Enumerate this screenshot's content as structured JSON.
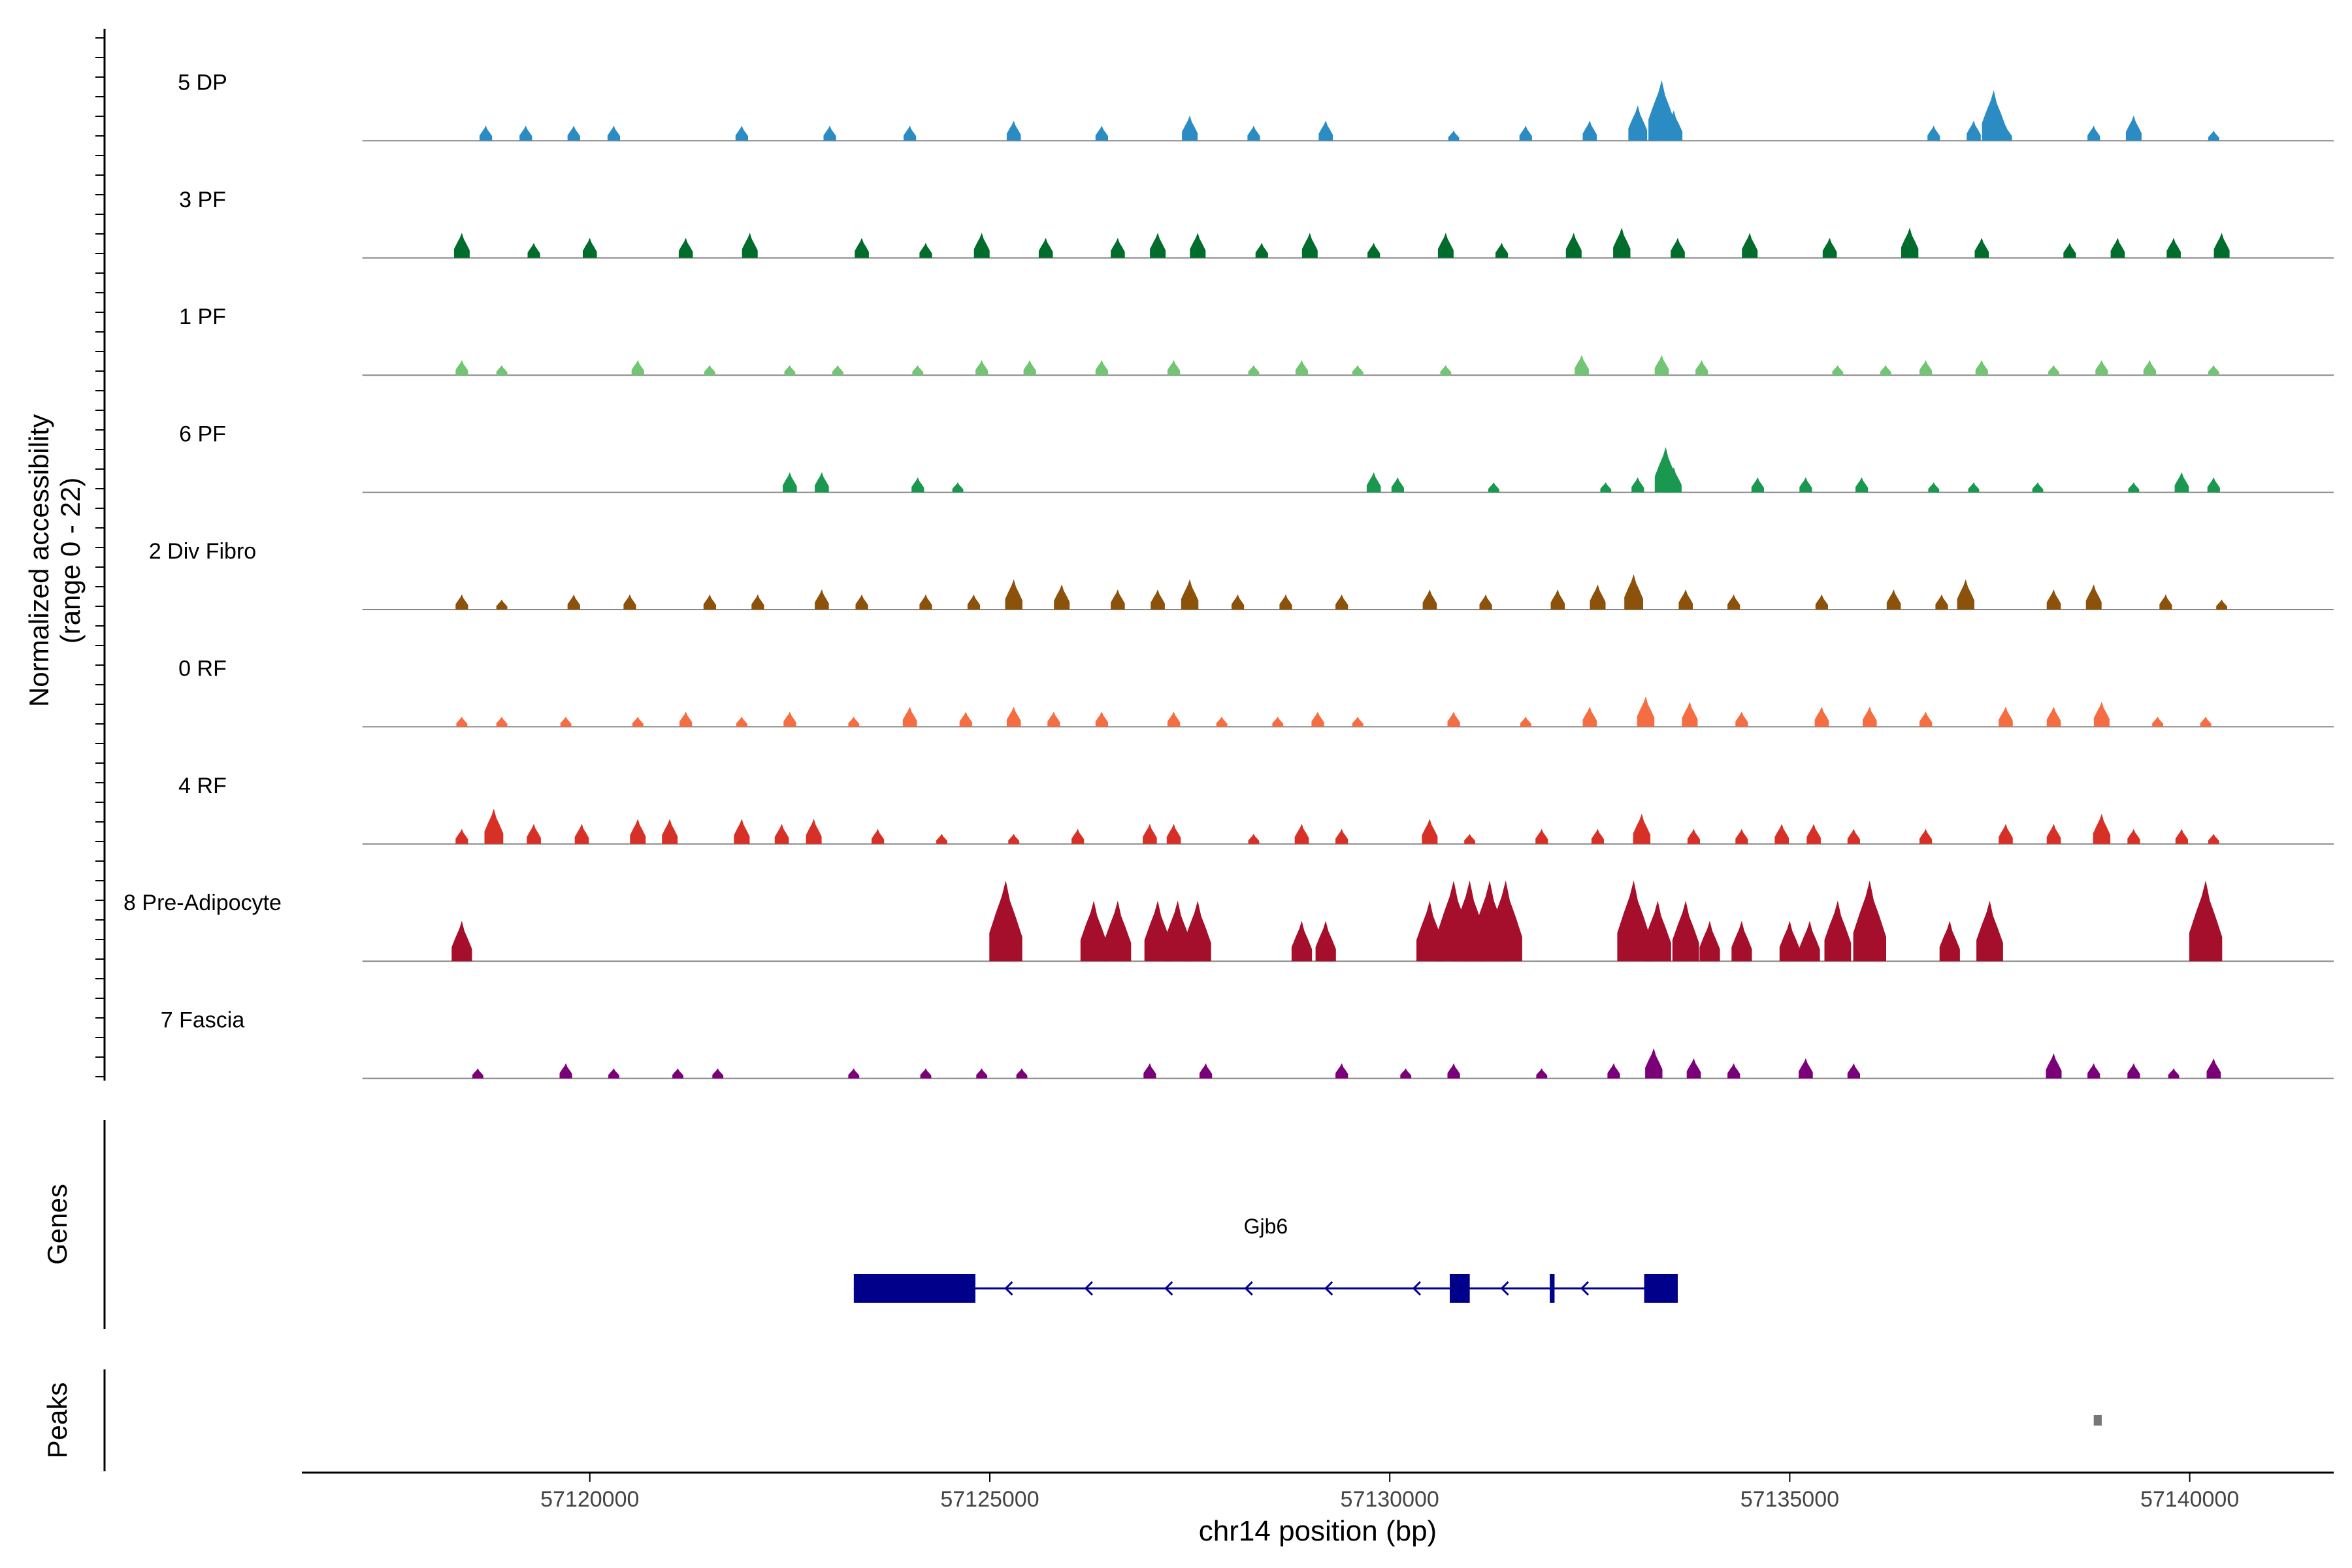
{
  "chart_data": {
    "type": "coverage-track",
    "title": "",
    "y_axis_label": [
      "Normalized accessibility",
      "(range 0 - 22)"
    ],
    "y_range": [
      0,
      22
    ],
    "x_axis_label": "chr14 position (bp)",
    "x_range": [
      57116400,
      57141800
    ],
    "x_ticks": [
      {
        "value": 57120000,
        "label": "57120000"
      },
      {
        "value": 57125000,
        "label": "57125000"
      },
      {
        "value": 57130000,
        "label": "57130000"
      },
      {
        "value": 57135000,
        "label": "57135000"
      },
      {
        "value": 57140000,
        "label": "57140000"
      }
    ],
    "track_start": 57118300,
    "track_end": 57140600,
    "tracks": [
      {
        "name": "5 DP",
        "color": "#2B8CC4",
        "peaks": [
          [
            57118700,
            3
          ],
          [
            57119200,
            3
          ],
          [
            57119800,
            3
          ],
          [
            57120300,
            3
          ],
          [
            57121900,
            3
          ],
          [
            57123000,
            3
          ],
          [
            57124000,
            3
          ],
          [
            57125300,
            4
          ],
          [
            57126400,
            3
          ],
          [
            57127500,
            5
          ],
          [
            57128300,
            3
          ],
          [
            57129200,
            4
          ],
          [
            57130800,
            2
          ],
          [
            57131700,
            3
          ],
          [
            57132500,
            4
          ],
          [
            57133100,
            7
          ],
          [
            57133400,
            12
          ],
          [
            57133550,
            6
          ],
          [
            57136800,
            3
          ],
          [
            57137300,
            4
          ],
          [
            57137700,
            3
          ],
          [
            57137550,
            10
          ],
          [
            57138800,
            3
          ],
          [
            57139300,
            5
          ],
          [
            57140300,
            2
          ]
        ]
      },
      {
        "name": "3 PF",
        "color": "#006D2C",
        "peaks": [
          [
            57118400,
            5
          ],
          [
            57119300,
            3
          ],
          [
            57120000,
            4
          ],
          [
            57121200,
            4
          ],
          [
            57122000,
            5
          ],
          [
            57123400,
            4
          ],
          [
            57124200,
            3
          ],
          [
            57124900,
            5
          ],
          [
            57125700,
            4
          ],
          [
            57126600,
            4
          ],
          [
            57127100,
            5
          ],
          [
            57127600,
            5
          ],
          [
            57128400,
            3
          ],
          [
            57129000,
            5
          ],
          [
            57129800,
            3
          ],
          [
            57130700,
            5
          ],
          [
            57131400,
            3
          ],
          [
            57132300,
            5
          ],
          [
            57132900,
            6
          ],
          [
            57133600,
            4
          ],
          [
            57134500,
            5
          ],
          [
            57135500,
            4
          ],
          [
            57136500,
            6
          ],
          [
            57137400,
            4
          ],
          [
            57138500,
            3
          ],
          [
            57139100,
            4
          ],
          [
            57139800,
            4
          ],
          [
            57140400,
            5
          ]
        ]
      },
      {
        "name": "1 PF",
        "color": "#74C476",
        "peaks": [
          [
            57118400,
            3
          ],
          [
            57118900,
            2
          ],
          [
            57120600,
            3
          ],
          [
            57121500,
            2
          ],
          [
            57122500,
            2
          ],
          [
            57123100,
            2
          ],
          [
            57124100,
            2
          ],
          [
            57124900,
            3
          ],
          [
            57125500,
            3
          ],
          [
            57126400,
            3
          ],
          [
            57127300,
            3
          ],
          [
            57128300,
            2
          ],
          [
            57128900,
            3
          ],
          [
            57129600,
            2
          ],
          [
            57130700,
            2
          ],
          [
            57132400,
            4
          ],
          [
            57133400,
            4
          ],
          [
            57133900,
            3
          ],
          [
            57135600,
            2
          ],
          [
            57136200,
            2
          ],
          [
            57136700,
            3
          ],
          [
            57137400,
            3
          ],
          [
            57138300,
            2
          ],
          [
            57138900,
            3
          ],
          [
            57139500,
            3
          ],
          [
            57140300,
            2
          ]
        ]
      },
      {
        "name": "6 PF",
        "color": "#1A9850",
        "peaks": [
          [
            57122500,
            4
          ],
          [
            57122900,
            4
          ],
          [
            57124100,
            3
          ],
          [
            57124600,
            2
          ],
          [
            57129800,
            4
          ],
          [
            57130100,
            3
          ],
          [
            57131300,
            2
          ],
          [
            57132700,
            2
          ],
          [
            57133100,
            3
          ],
          [
            57133450,
            9
          ],
          [
            57133550,
            5
          ],
          [
            57134600,
            3
          ],
          [
            57135200,
            3
          ],
          [
            57135900,
            3
          ],
          [
            57136800,
            2
          ],
          [
            57137300,
            2
          ],
          [
            57138100,
            2
          ],
          [
            57139300,
            2
          ],
          [
            57139900,
            4
          ],
          [
            57140300,
            3
          ]
        ]
      },
      {
        "name": "2 Div Fibro",
        "color": "#8C510A",
        "peaks": [
          [
            57118400,
            3
          ],
          [
            57118900,
            2
          ],
          [
            57119800,
            3
          ],
          [
            57120500,
            3
          ],
          [
            57121500,
            3
          ],
          [
            57122100,
            3
          ],
          [
            57122900,
            4
          ],
          [
            57123400,
            3
          ],
          [
            57124200,
            3
          ],
          [
            57124800,
            3
          ],
          [
            57125300,
            6
          ],
          [
            57125900,
            5
          ],
          [
            57126600,
            4
          ],
          [
            57127100,
            4
          ],
          [
            57127500,
            6
          ],
          [
            57128100,
            3
          ],
          [
            57128700,
            3
          ],
          [
            57129400,
            3
          ],
          [
            57130500,
            4
          ],
          [
            57131200,
            3
          ],
          [
            57132100,
            4
          ],
          [
            57132600,
            5
          ],
          [
            57133050,
            7
          ],
          [
            57133700,
            4
          ],
          [
            57134300,
            3
          ],
          [
            57135400,
            3
          ],
          [
            57136300,
            4
          ],
          [
            57136900,
            3
          ],
          [
            57137200,
            6
          ],
          [
            57138300,
            4
          ],
          [
            57138800,
            5
          ],
          [
            57139700,
            3
          ],
          [
            57140400,
            2
          ]
        ]
      },
      {
        "name": "0 RF",
        "color": "#F46D43",
        "peaks": [
          [
            57118400,
            2
          ],
          [
            57118900,
            2
          ],
          [
            57119700,
            2
          ],
          [
            57120600,
            2
          ],
          [
            57121200,
            3
          ],
          [
            57121900,
            2
          ],
          [
            57122500,
            3
          ],
          [
            57123300,
            2
          ],
          [
            57124000,
            4
          ],
          [
            57124700,
            3
          ],
          [
            57125300,
            4
          ],
          [
            57125800,
            3
          ],
          [
            57126400,
            3
          ],
          [
            57127300,
            3
          ],
          [
            57127900,
            2
          ],
          [
            57128600,
            2
          ],
          [
            57129100,
            3
          ],
          [
            57129600,
            2
          ],
          [
            57130800,
            3
          ],
          [
            57131700,
            2
          ],
          [
            57132500,
            4
          ],
          [
            57133200,
            6
          ],
          [
            57133750,
            5
          ],
          [
            57134400,
            3
          ],
          [
            57135400,
            4
          ],
          [
            57136000,
            4
          ],
          [
            57136700,
            3
          ],
          [
            57137700,
            4
          ],
          [
            57138300,
            4
          ],
          [
            57138900,
            5
          ],
          [
            57139600,
            2
          ],
          [
            57140200,
            2
          ]
        ]
      },
      {
        "name": "4 RF",
        "color": "#D73027",
        "peaks": [
          [
            57118400,
            3
          ],
          [
            57118800,
            7
          ],
          [
            57119300,
            4
          ],
          [
            57119900,
            4
          ],
          [
            57120600,
            5
          ],
          [
            57121000,
            5
          ],
          [
            57121900,
            5
          ],
          [
            57122400,
            4
          ],
          [
            57122800,
            5
          ],
          [
            57123600,
            3
          ],
          [
            57124400,
            2
          ],
          [
            57125300,
            2
          ],
          [
            57126100,
            3
          ],
          [
            57127000,
            4
          ],
          [
            57127300,
            4
          ],
          [
            57128300,
            2
          ],
          [
            57128900,
            4
          ],
          [
            57129400,
            3
          ],
          [
            57130500,
            5
          ],
          [
            57131000,
            2
          ],
          [
            57131900,
            3
          ],
          [
            57132600,
            3
          ],
          [
            57133150,
            6
          ],
          [
            57133800,
            3
          ],
          [
            57134400,
            3
          ],
          [
            57134900,
            4
          ],
          [
            57135300,
            4
          ],
          [
            57135800,
            3
          ],
          [
            57136700,
            3
          ],
          [
            57137700,
            4
          ],
          [
            57138300,
            4
          ],
          [
            57138900,
            6
          ],
          [
            57139300,
            3
          ],
          [
            57139900,
            3
          ],
          [
            57140300,
            2
          ]
        ]
      },
      {
        "name": "8 Pre-Adipocyte",
        "color": "#A50F2C",
        "peaks": [
          [
            57118400,
            8
          ],
          [
            57125200,
            16
          ],
          [
            57126300,
            12
          ],
          [
            57126600,
            12
          ],
          [
            57127100,
            12
          ],
          [
            57127350,
            12
          ],
          [
            57127600,
            12
          ],
          [
            57128900,
            8
          ],
          [
            57129200,
            8
          ],
          [
            57130500,
            12
          ],
          [
            57130800,
            16
          ],
          [
            57131000,
            16
          ],
          [
            57131250,
            16
          ],
          [
            57131450,
            16
          ],
          [
            57133050,
            16
          ],
          [
            57133350,
            12
          ],
          [
            57133700,
            12
          ],
          [
            57134000,
            8
          ],
          [
            57134400,
            8
          ],
          [
            57135000,
            8
          ],
          [
            57135250,
            8
          ],
          [
            57135600,
            12
          ],
          [
            57136000,
            16
          ],
          [
            57137000,
            8
          ],
          [
            57137500,
            12
          ],
          [
            57140200,
            16
          ]
        ]
      },
      {
        "name": "7 Fascia",
        "color": "#7A0177",
        "peaks": [
          [
            57118600,
            2
          ],
          [
            57119700,
            3
          ],
          [
            57120300,
            2
          ],
          [
            57121100,
            2
          ],
          [
            57121600,
            2
          ],
          [
            57123300,
            2
          ],
          [
            57124200,
            2
          ],
          [
            57124900,
            2
          ],
          [
            57125400,
            2
          ],
          [
            57127000,
            3
          ],
          [
            57127700,
            3
          ],
          [
            57129400,
            3
          ],
          [
            57130200,
            2
          ],
          [
            57130800,
            3
          ],
          [
            57131900,
            2
          ],
          [
            57132800,
            3
          ],
          [
            57133300,
            6
          ],
          [
            57133800,
            4
          ],
          [
            57134300,
            3
          ],
          [
            57135200,
            4
          ],
          [
            57135800,
            3
          ],
          [
            57138300,
            5
          ],
          [
            57138800,
            3
          ],
          [
            57139300,
            3
          ],
          [
            57139800,
            2
          ],
          [
            57140300,
            4
          ]
        ]
      }
    ],
    "genes": [
      {
        "name": "Gjb6",
        "strand": "-",
        "start": 57123300,
        "end": 57133600,
        "exons": [
          [
            57123300,
            57124820
          ],
          [
            57130750,
            57131000
          ],
          [
            57132000,
            57132060
          ],
          [
            57133180,
            57133600
          ]
        ],
        "arrows": [
          57125200,
          57126200,
          57127200,
          57128200,
          57129200,
          57130300,
          57131400,
          57132400
        ]
      }
    ],
    "peaks_track_label": "Peaks",
    "genes_track_label": "Genes",
    "peak_regions": [
      [
        57138800,
        57138900
      ]
    ]
  }
}
